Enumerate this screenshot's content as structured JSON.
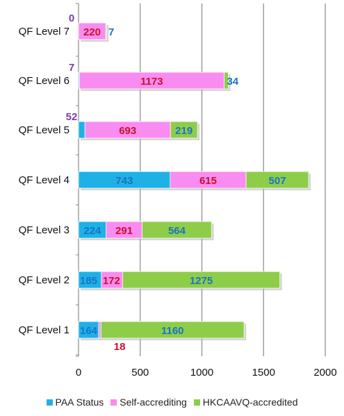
{
  "colors": {
    "paa": "#1fb1e6",
    "self": "#f98cf0",
    "hkcaavq": "#8ecd4a",
    "label_paa": "#1a73c7",
    "label_self": "#c8102e",
    "label_hkcaavq": "#1a73c7",
    "label_outside": "#7b3fa0",
    "grid": "#888888"
  },
  "chart_data": {
    "type": "bar",
    "orientation": "horizontal",
    "stacked": true,
    "categories": [
      "QF Level 7",
      "QF Level 6",
      "QF Level 5",
      "QF Level 4",
      "QF Level 3",
      "QF Level 2",
      "QF Level 1"
    ],
    "series": [
      {
        "name": "PAA Status",
        "values": [
          0,
          7,
          52,
          743,
          224,
          185,
          164
        ]
      },
      {
        "name": "Self-accrediting",
        "values": [
          220,
          1173,
          693,
          615,
          291,
          172,
          18
        ]
      },
      {
        "name": "HKCAAVQ-accredited",
        "values": [
          7,
          34,
          219,
          507,
          564,
          1275,
          1160
        ]
      }
    ],
    "xlim": [
      0,
      2000
    ],
    "xticks": [
      "0",
      "500",
      "1000",
      "1500",
      "2000"
    ],
    "grid": true,
    "legend_position": "bottom"
  }
}
